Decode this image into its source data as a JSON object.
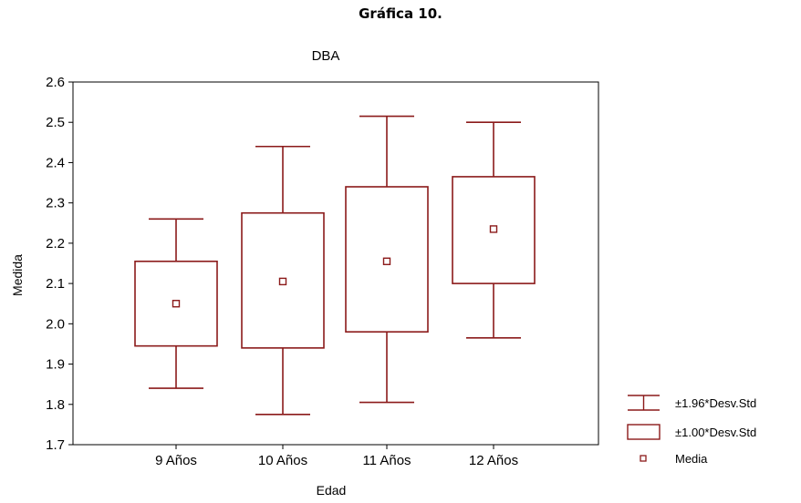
{
  "figure_heading": "Gráfica 10.",
  "chart_data": {
    "type": "boxplot",
    "title": "DBA",
    "xlabel": "Edad",
    "ylabel": "Medida",
    "categories": [
      "9 Años",
      "10 Años",
      "11 Años",
      "12 Años"
    ],
    "mean": [
      2.05,
      2.105,
      2.155,
      2.235
    ],
    "box_low": [
      1.945,
      1.94,
      1.98,
      2.1
    ],
    "box_high": [
      2.155,
      2.275,
      2.34,
      2.365
    ],
    "whisker_low": [
      1.84,
      1.775,
      1.805,
      1.965
    ],
    "whisker_high": [
      2.26,
      2.44,
      2.515,
      2.5
    ],
    "ylim": [
      1.7,
      2.6
    ],
    "yticks": [
      "1.7",
      "1.8",
      "1.9",
      "2.0",
      "2.1",
      "2.2",
      "2.3",
      "2.4",
      "2.5",
      "2.6"
    ],
    "legend": [
      "±1.96*Desv.Std",
      "±1.00*Desv.Std",
      "Media"
    ],
    "legend_position": "right-bottom",
    "grid": false,
    "color": "#8b1a1a"
  }
}
